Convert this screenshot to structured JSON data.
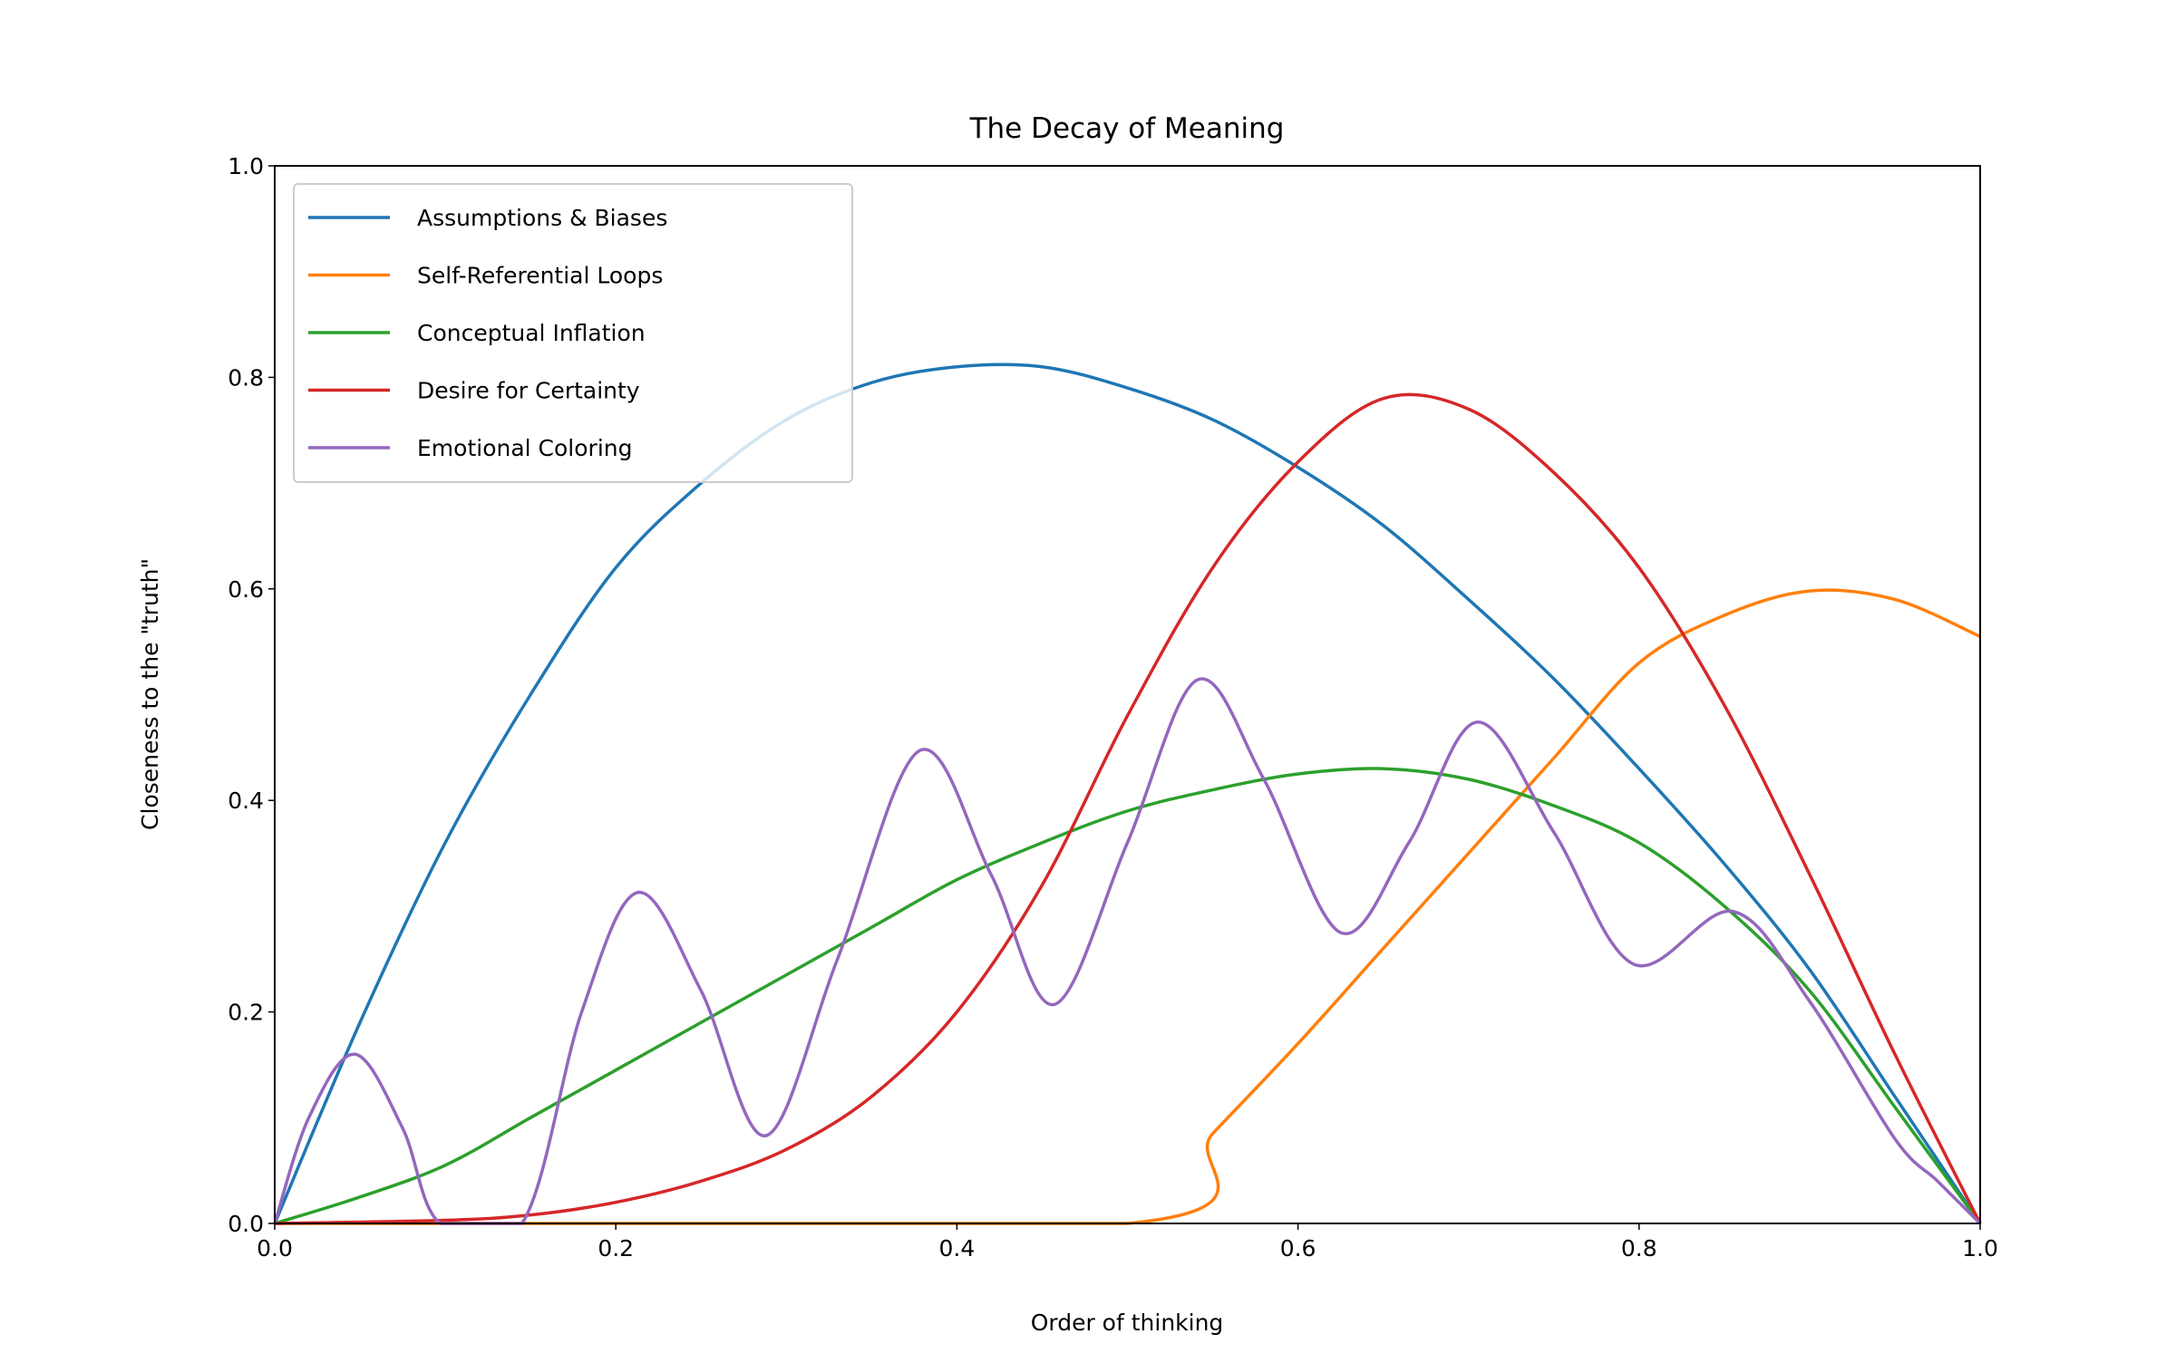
{
  "chart_data": {
    "type": "line",
    "title": "The Decay of Meaning",
    "xlabel": "Order of thinking",
    "ylabel": "Closeness to the \"truth\"",
    "xlim": [
      0,
      1
    ],
    "ylim": [
      0,
      1
    ],
    "xticks": [
      "0.0",
      "0.2",
      "0.4",
      "0.6",
      "0.8",
      "1.0"
    ],
    "yticks": [
      "0.0",
      "0.2",
      "0.4",
      "0.6",
      "0.8",
      "1.0"
    ],
    "grid": false,
    "legend_position": "top-left",
    "series": [
      {
        "name": "Assumptions & Biases",
        "color": "#1f77b4",
        "x": [
          0,
          0.05,
          0.1,
          0.15,
          0.2,
          0.25,
          0.3,
          0.35,
          0.4,
          0.45,
          0.5,
          0.55,
          0.6,
          0.65,
          0.7,
          0.75,
          0.8,
          0.85,
          0.9,
          0.95,
          1
        ],
        "y": [
          0,
          0.19,
          0.36,
          0.5,
          0.62,
          0.7,
          0.76,
          0.795,
          0.81,
          0.81,
          0.79,
          0.76,
          0.715,
          0.66,
          0.59,
          0.515,
          0.43,
          0.34,
          0.24,
          0.12,
          0
        ]
      },
      {
        "name": "Self-Referential Loops",
        "color": "#ff7f0e",
        "x": [
          0,
          0.5,
          0.55,
          0.6,
          0.65,
          0.7,
          0.75,
          0.8,
          0.85,
          0.9,
          0.95,
          1
        ],
        "y": [
          0,
          0,
          0.085,
          0.17,
          0.26,
          0.35,
          0.44,
          0.53,
          0.575,
          0.598,
          0.59,
          0.555
        ]
      },
      {
        "name": "Conceptual Inflation",
        "color": "#2ca02c",
        "x": [
          0,
          0.05,
          0.1,
          0.15,
          0.2,
          0.25,
          0.3,
          0.35,
          0.4,
          0.45,
          0.5,
          0.55,
          0.6,
          0.65,
          0.7,
          0.75,
          0.8,
          0.85,
          0.9,
          0.95,
          1
        ],
        "y": [
          0,
          0.025,
          0.055,
          0.1,
          0.145,
          0.19,
          0.235,
          0.28,
          0.325,
          0.36,
          0.39,
          0.41,
          0.425,
          0.43,
          0.42,
          0.395,
          0.36,
          0.3,
          0.22,
          0.11,
          0
        ]
      },
      {
        "name": "Desire for Certainty",
        "color": "#d62728",
        "x": [
          0,
          0.1,
          0.15,
          0.2,
          0.25,
          0.3,
          0.35,
          0.4,
          0.45,
          0.5,
          0.55,
          0.6,
          0.65,
          0.7,
          0.75,
          0.8,
          0.85,
          0.9,
          0.95,
          1
        ],
        "y": [
          0,
          0.003,
          0.008,
          0.02,
          0.04,
          0.07,
          0.12,
          0.2,
          0.32,
          0.48,
          0.62,
          0.72,
          0.78,
          0.77,
          0.71,
          0.62,
          0.49,
          0.33,
          0.16,
          0
        ]
      },
      {
        "name": "Emotional Coloring",
        "color": "#9467bd",
        "x": [
          0,
          0.02,
          0.047,
          0.075,
          0.097,
          0.145,
          0.18,
          0.213,
          0.25,
          0.288,
          0.33,
          0.378,
          0.42,
          0.457,
          0.5,
          0.541,
          0.58,
          0.625,
          0.665,
          0.705,
          0.75,
          0.797,
          0.855,
          0.9,
          0.95,
          0.975,
          1
        ],
        "y": [
          0,
          0.1,
          0.16,
          0.09,
          0,
          0,
          0.2,
          0.313,
          0.22,
          0.083,
          0.25,
          0.447,
          0.33,
          0.207,
          0.36,
          0.514,
          0.42,
          0.275,
          0.36,
          0.474,
          0.37,
          0.245,
          0.295,
          0.21,
          0.08,
          0.04,
          0
        ]
      }
    ]
  }
}
